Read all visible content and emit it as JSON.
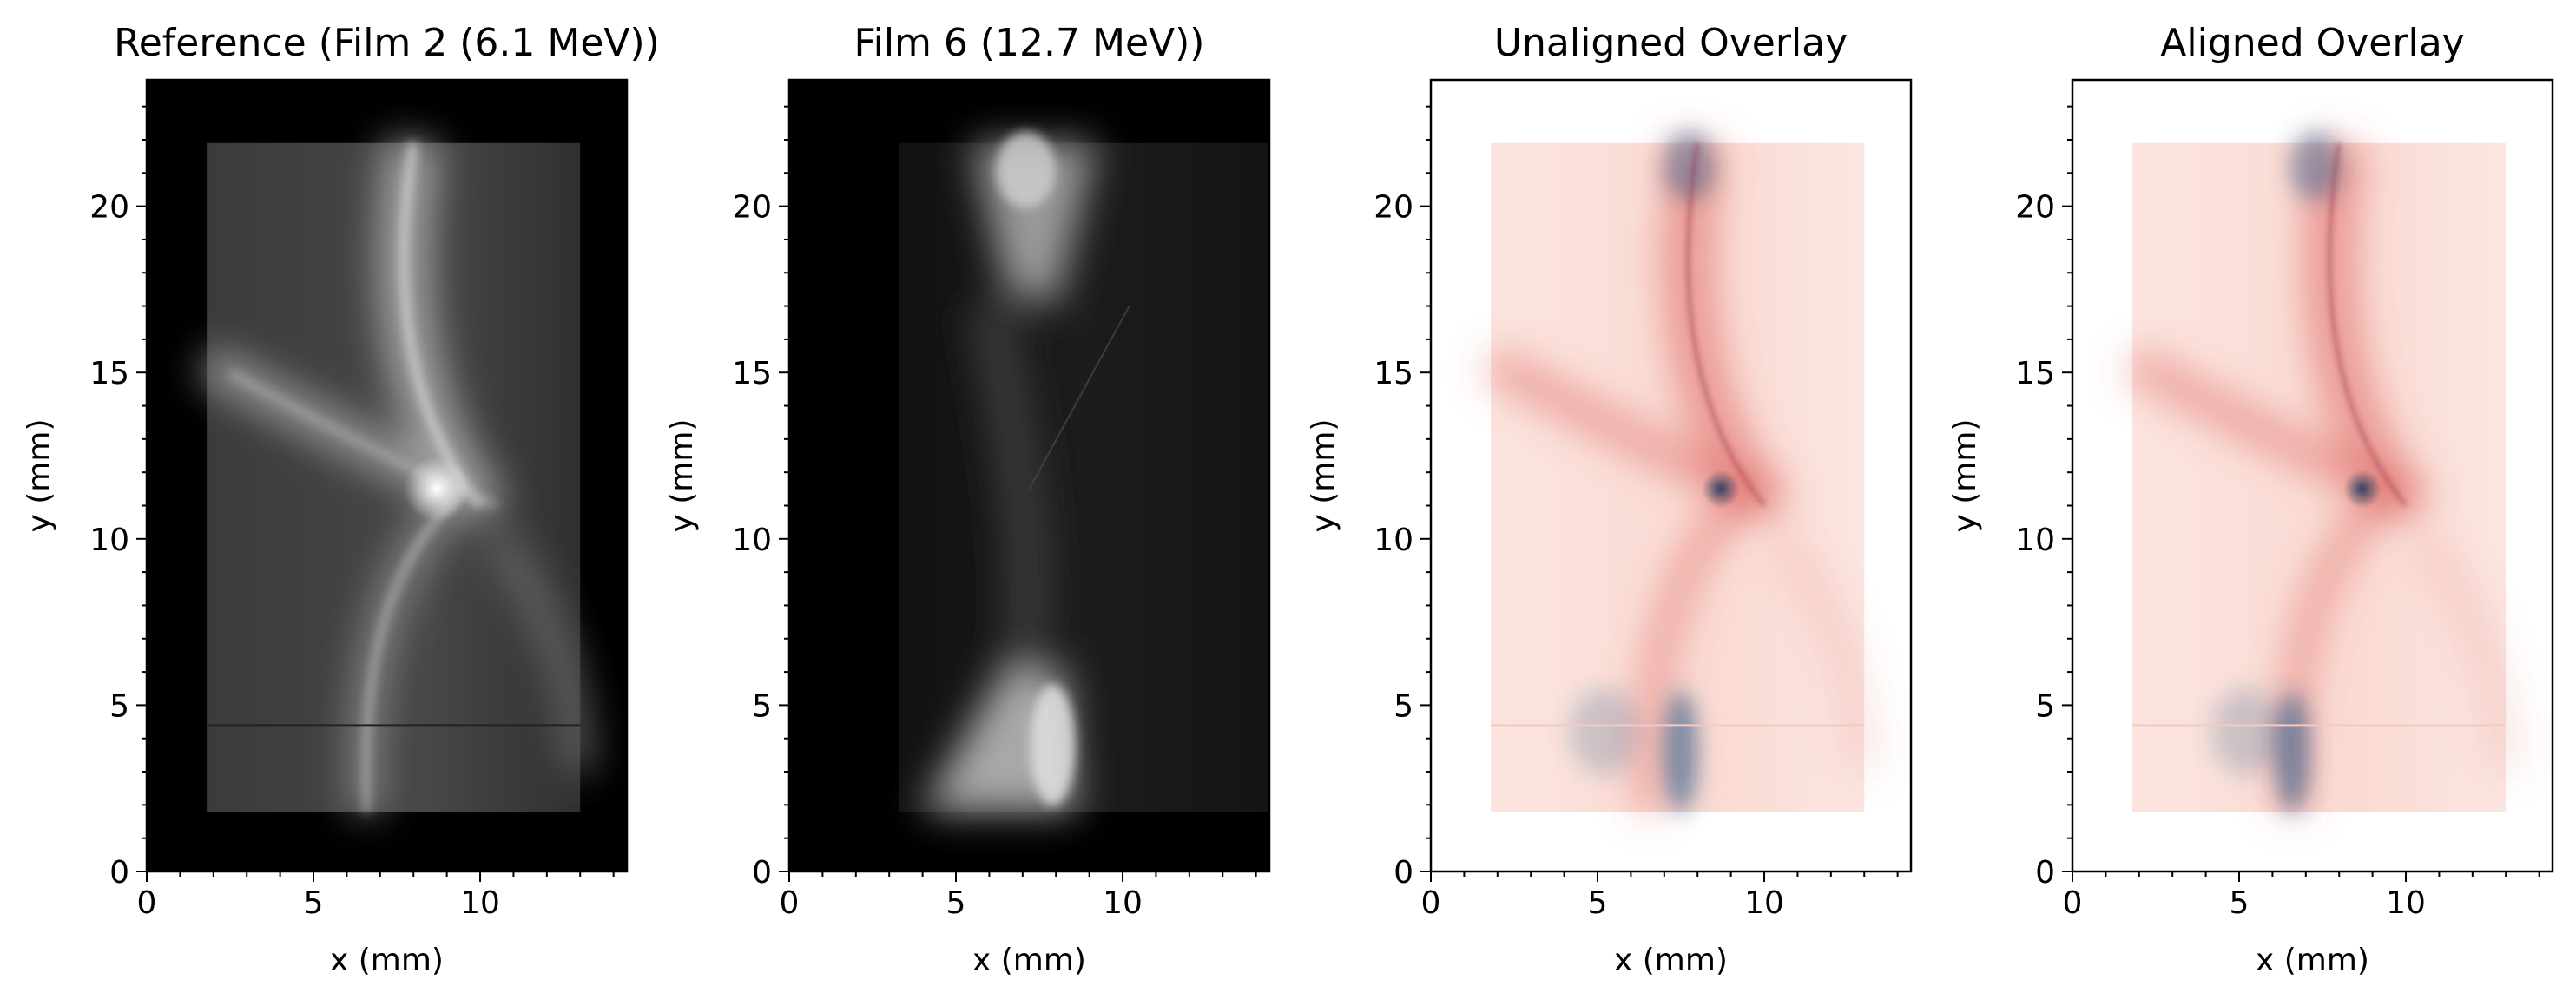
{
  "chart_data": [
    {
      "type": "heatmap",
      "title": "Reference (Film 2 (6.1 MeV))",
      "xlabel": "x (mm)",
      "ylabel": "y (mm)",
      "xlim": [
        0,
        14.4
      ],
      "ylim": [
        0,
        23.8
      ],
      "xticks": [
        0,
        5,
        10
      ],
      "yticks": [
        0,
        5,
        10,
        15,
        20
      ],
      "colormap": "gray",
      "film_extent": {
        "x": [
          1.8,
          13.0
        ],
        "y": [
          1.8,
          21.9
        ]
      },
      "features": {
        "bright_spot": [
          8.7,
          11.5
        ],
        "line_mark_y": 4.4
      }
    },
    {
      "type": "heatmap",
      "title": "Film 6 (12.7 MeV))",
      "xlabel": "x (mm)",
      "ylabel": "y (mm)",
      "xlim": [
        0,
        14.4
      ],
      "ylim": [
        0,
        23.8
      ],
      "xticks": [
        0,
        5,
        10
      ],
      "yticks": [
        0,
        5,
        10,
        15,
        20
      ],
      "colormap": "gray",
      "film_extent": {
        "x": [
          3.3,
          14.4
        ],
        "y": [
          1.8,
          21.9
        ]
      },
      "features": {
        "top_blob": [
          7.3,
          21.0
        ],
        "bottom_blob": [
          7.5,
          4.0
        ]
      }
    },
    {
      "type": "heatmap",
      "title": "Unaligned Overlay",
      "xlabel": "x (mm)",
      "ylabel": "y (mm)",
      "xlim": [
        0,
        14.4
      ],
      "ylim": [
        0,
        23.8
      ],
      "xticks": [
        0,
        5,
        10
      ],
      "yticks": [
        0,
        5,
        10,
        15,
        20
      ],
      "colors": {
        "reference": "#d9534f",
        "film": "#2b5b8a"
      },
      "film_extent": {
        "x": [
          1.8,
          13.0
        ],
        "y": [
          1.8,
          21.9
        ]
      },
      "features": {
        "dark_spot": [
          8.7,
          11.5
        ]
      }
    },
    {
      "type": "heatmap",
      "title": "Aligned Overlay",
      "xlabel": "x (mm)",
      "ylabel": "y (mm)",
      "xlim": [
        0,
        14.4
      ],
      "ylim": [
        0,
        23.8
      ],
      "xticks": [
        0,
        5,
        10
      ],
      "yticks": [
        0,
        5,
        10,
        15,
        20
      ],
      "colors": {
        "reference": "#d9534f",
        "film": "#2b5b8a"
      },
      "film_extent": {
        "x": [
          1.8,
          13.0
        ],
        "y": [
          1.8,
          21.9
        ]
      },
      "features": {
        "dark_spot": [
          8.7,
          11.5
        ]
      }
    }
  ]
}
